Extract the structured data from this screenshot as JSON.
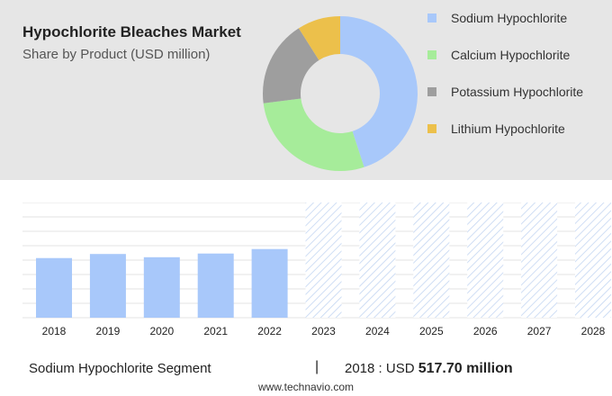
{
  "header": {
    "title": "Hypochlorite Bleaches Market",
    "subtitle": "Share by Product (USD million)"
  },
  "chart_data": [
    {
      "type": "pie",
      "title": "Hypochlorite Bleaches Market",
      "subtitle": "Share by Product (USD million)",
      "legend_position": "right",
      "series": [
        {
          "name": "Sodium Hypochlorite",
          "value": 45,
          "color": "#a8c8fa"
        },
        {
          "name": "Calcium Hypochlorite",
          "value": 28,
          "color": "#a6ec9a"
        },
        {
          "name": "Potassium Hypochlorite",
          "value": 18,
          "color": "#9e9e9e"
        },
        {
          "name": "Lithium Hypochlorite",
          "value": 9,
          "color": "#ecc04b"
        }
      ]
    },
    {
      "type": "bar",
      "categories": [
        "2018",
        "2019",
        "2020",
        "2021",
        "2022",
        "2023",
        "2024",
        "2025",
        "2026",
        "2027",
        "2028"
      ],
      "values": [
        517.7,
        553,
        525,
        557,
        596,
        null,
        null,
        null,
        null,
        null,
        null
      ],
      "forecast_categories": [
        "2023",
        "2024",
        "2025",
        "2026",
        "2027",
        "2028"
      ],
      "ylim": [
        0,
        1000
      ],
      "grid": true,
      "bar_color": "#a8c8fa"
    }
  ],
  "footer": {
    "segment": "Sodium Hypochlorite Segment",
    "separator": "|",
    "year_label": "2018 : USD",
    "value": "517.70 million",
    "source": "www.technavio.com"
  }
}
